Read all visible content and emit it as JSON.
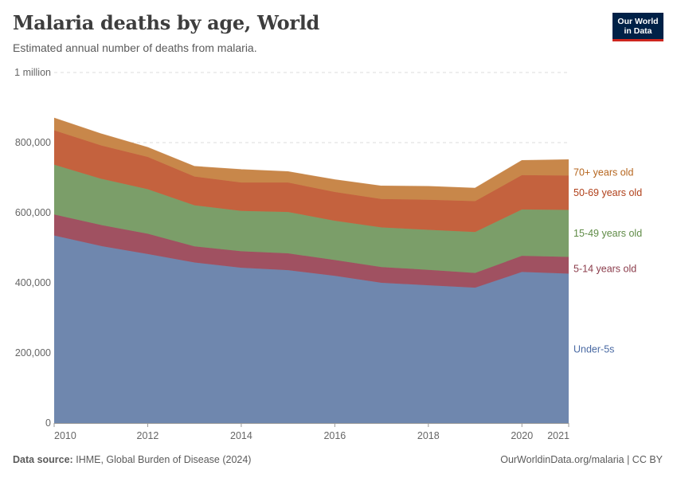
{
  "header": {
    "title": "Malaria deaths by age, World",
    "subtitle": "Estimated annual number of deaths from malaria."
  },
  "logo": {
    "line1": "Our World",
    "line2": "in Data",
    "bg": "#002147",
    "accent": "#ce261e"
  },
  "footer": {
    "source_label": "Data source:",
    "source_text": "IHME, Global Burden of Disease (2024)",
    "right_text": "OurWorldinData.org/malaria | CC BY"
  },
  "chart_data": {
    "type": "area",
    "stacked": true,
    "x": [
      2010,
      2011,
      2012,
      2013,
      2014,
      2015,
      2016,
      2017,
      2018,
      2019,
      2020,
      2021
    ],
    "x_ticks": [
      "2010",
      "2012",
      "2014",
      "2016",
      "2018",
      "2020",
      "2021"
    ],
    "y_ticks": [
      {
        "value": 0,
        "label": "0"
      },
      {
        "value": 200000,
        "label": "200,000"
      },
      {
        "value": 400000,
        "label": "400,000"
      },
      {
        "value": 600000,
        "label": "600,000"
      },
      {
        "value": 800000,
        "label": "800,000"
      },
      {
        "value": 1000000,
        "label": "1 million"
      }
    ],
    "ylim": [
      0,
      1000000
    ],
    "grid": true,
    "legend": "right (inline labels)",
    "series": [
      {
        "name": "Under-5s",
        "color": "#6f87ae",
        "values": [
          535000,
          505000,
          482000,
          458000,
          443000,
          436000,
          420000,
          400000,
          393000,
          386000,
          431000,
          426000
        ]
      },
      {
        "name": "5-14 years old",
        "color": "#a05161",
        "values": [
          60000,
          60000,
          58000,
          46000,
          47000,
          48000,
          45000,
          45000,
          44000,
          42000,
          46000,
          48000
        ]
      },
      {
        "name": "15-49 years old",
        "color": "#7b9e69",
        "values": [
          142000,
          132000,
          127000,
          117000,
          115000,
          118000,
          112000,
          113000,
          114000,
          117000,
          132000,
          134000
        ]
      },
      {
        "name": "50-69 years old",
        "color": "#c4623e",
        "values": [
          98000,
          95000,
          92000,
          82000,
          81000,
          84000,
          82000,
          81000,
          86000,
          88000,
          98000,
          98000
        ]
      },
      {
        "name": "70+ years old",
        "color": "#c8874a",
        "values": [
          35000,
          33000,
          27000,
          29000,
          37000,
          31000,
          35000,
          37000,
          38000,
          37000,
          42000,
          45000
        ]
      }
    ],
    "label_colors": {
      "Under-5s": "#4a6aa3",
      "5-14 years old": "#8b3c4b",
      "15-49 years old": "#5f8b46",
      "50-69 years old": "#b0401a",
      "70+ years old": "#b5651d"
    }
  }
}
